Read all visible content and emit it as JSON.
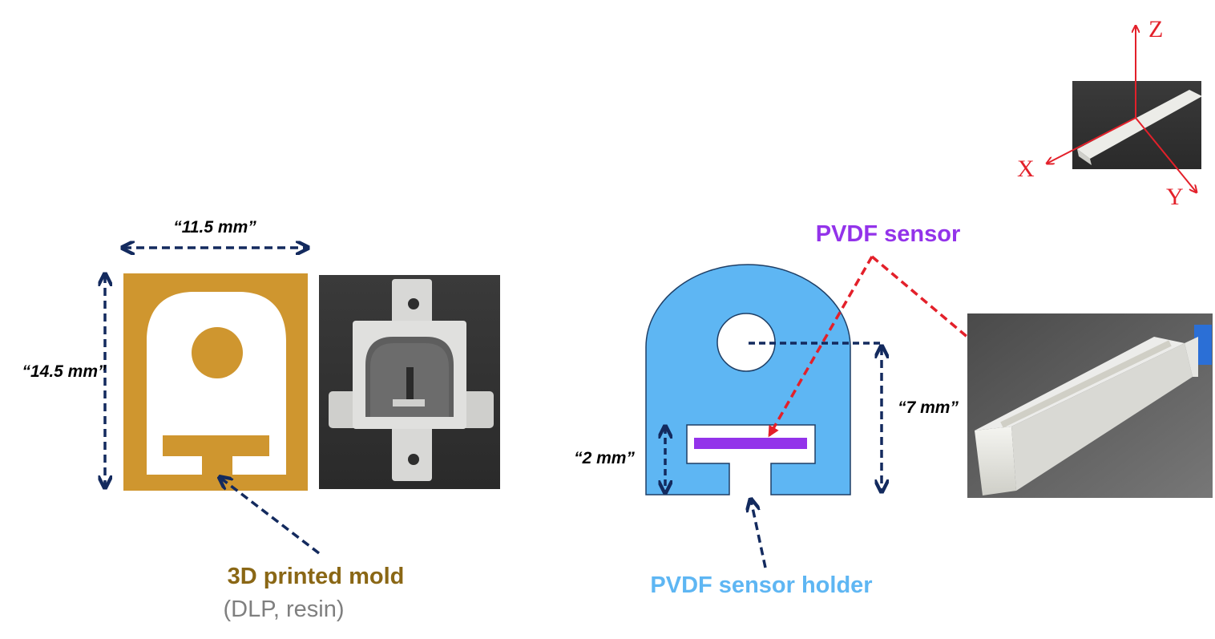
{
  "colors": {
    "mold": "#cf962f",
    "mold_label": "#8a6715",
    "holder": "#5eb6f3",
    "holder_label": "#5eb6f3",
    "sensor": "#9333ea",
    "sensor_label": "#9333ea",
    "dim_arrow": "#132a5e",
    "red_arrow": "#e3202a",
    "gray_text": "#7f7f7f"
  },
  "mold": {
    "width_label": "“11.5 mm”",
    "height_label": "“14.5 mm”",
    "title": "3D printed mold",
    "subtitle": "(DLP, resin)",
    "photo_name": "mold-photo"
  },
  "holder": {
    "slot_depth_label": "“2 mm”",
    "hole_height_label": "“7 mm”",
    "title": "PVDF sensor holder"
  },
  "sensor": {
    "title": "PVDF sensor"
  },
  "axes": {
    "z": "Z",
    "x": "X",
    "y": "Y"
  }
}
